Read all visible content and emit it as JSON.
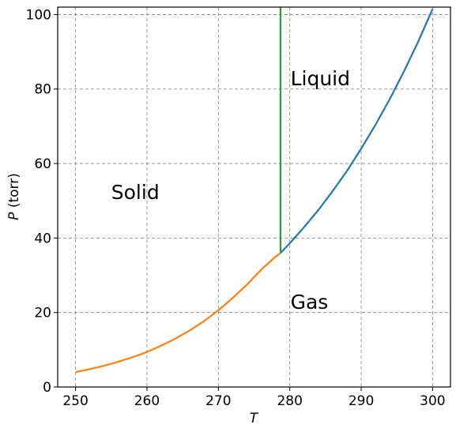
{
  "chart_data": {
    "type": "line",
    "title": "",
    "xlabel": "T",
    "ylabel_symbol": "P",
    "ylabel_unit": " (torr)",
    "xlim": [
      247.5,
      302.5
    ],
    "ylim": [
      0,
      102
    ],
    "grid": true,
    "x_ticks": [
      250,
      260,
      270,
      280,
      290,
      300
    ],
    "y_ticks": [
      0,
      20,
      40,
      60,
      80,
      100
    ],
    "series": [
      {
        "color": "#1f77b4",
        "x": [
          278.7,
          280,
          282,
          284,
          286,
          288,
          290,
          292,
          294,
          296,
          298,
          300
        ],
        "y": [
          36.0,
          38.6,
          42.9,
          47.5,
          52.6,
          58.0,
          64.0,
          70.4,
          77.3,
          84.8,
          92.8,
          101.5
        ]
      },
      {
        "color": "#ff7f0e",
        "x": [
          250,
          252,
          254,
          256,
          258,
          260,
          262,
          264,
          266,
          268,
          270,
          272,
          274,
          276,
          278,
          278.7
        ],
        "y": [
          4.0,
          4.8,
          5.7,
          6.8,
          8.0,
          9.4,
          11.1,
          13.0,
          15.2,
          17.7,
          20.6,
          23.9,
          27.5,
          31.5,
          35.0,
          36.0
        ]
      },
      {
        "color": "#2ca02c",
        "x": [
          278.7,
          278.7
        ],
        "y": [
          36.0,
          102
        ]
      }
    ],
    "annotations": [
      {
        "text": "Liquid",
        "x": 280.1,
        "y": 81
      },
      {
        "text": "Solid",
        "x": 255.0,
        "y": 50.5
      },
      {
        "text": "Gas",
        "x": 280.1,
        "y": 21
      }
    ]
  }
}
